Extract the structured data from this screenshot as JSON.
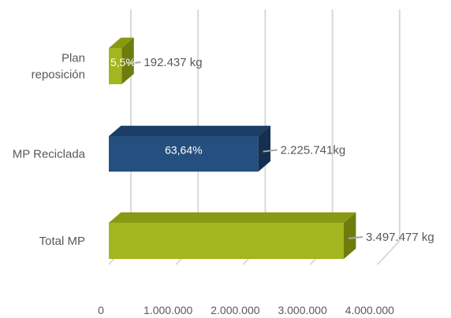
{
  "chart_data": {
    "type": "bar",
    "orientation": "horizontal",
    "three_d": true,
    "categories": [
      [
        "Plan",
        "reposición"
      ],
      [
        "MP Reciclada"
      ],
      [
        "Total MP"
      ]
    ],
    "values": [
      192437,
      2225741,
      3497477
    ],
    "value_labels": [
      "192.437 kg",
      "2.225.741kg",
      "3.497.477 kg"
    ],
    "percent_labels": [
      "5,5%",
      "63,64%",
      ""
    ],
    "xlim": [
      0,
      4000000
    ],
    "x_ticks": [
      0,
      1000000,
      2000000,
      3000000,
      4000000
    ],
    "x_tick_labels": [
      "0",
      "1.000.000",
      "2.000.000",
      "3.000.000",
      "4.000.000"
    ],
    "gridlines": true,
    "legend": "none",
    "colors": {
      "bar_front": [
        "#a3b51f",
        "#254f7e",
        "#a3b51f"
      ],
      "bar_top": [
        "#889a14",
        "#1b3e66",
        "#889a14"
      ],
      "bar_side": [
        "#6d7c0d",
        "#142f4f",
        "#6d7c0d"
      ],
      "grid": "#d9d9d9",
      "text": "#595959",
      "percent_text": "#ffffff"
    }
  }
}
